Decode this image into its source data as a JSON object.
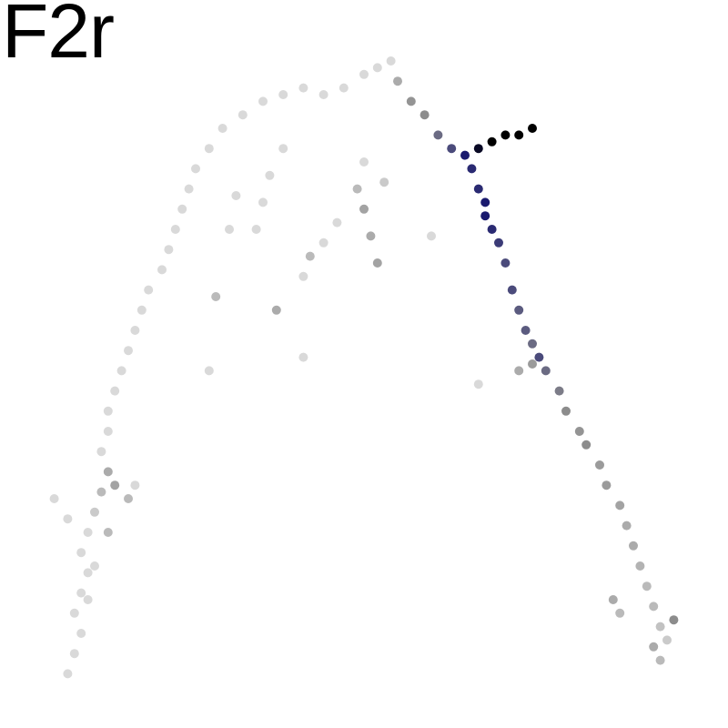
{
  "chart_data": {
    "type": "scatter",
    "title": "F2r",
    "xlabel": "",
    "ylabel": "",
    "axes_visible": false,
    "grid": false,
    "legend": "none",
    "color_scale": {
      "low": "#d9d9d9",
      "mid": "#8c8c8c",
      "high_1": "#1a1a6e",
      "high_2": "#000000"
    },
    "xlim": [
      0,
      100
    ],
    "ylim": [
      0,
      100
    ],
    "series": [
      {
        "points": [
          [
            6,
            4,
            0
          ],
          [
            7,
            7,
            0
          ],
          [
            8,
            10,
            0
          ],
          [
            7,
            13,
            0
          ],
          [
            8,
            16,
            0
          ],
          [
            9,
            19,
            0
          ],
          [
            8,
            22,
            0
          ],
          [
            9,
            25,
            0
          ],
          [
            10,
            28,
            0.1
          ],
          [
            11,
            31,
            0.2
          ],
          [
            12,
            34,
            0.3
          ],
          [
            11,
            37,
            0
          ],
          [
            12,
            40,
            0
          ],
          [
            12,
            43,
            0
          ],
          [
            13,
            46,
            0
          ],
          [
            14,
            49,
            0
          ],
          [
            15,
            52,
            0
          ],
          [
            16,
            55,
            0
          ],
          [
            17,
            58,
            0
          ],
          [
            18,
            61,
            0
          ],
          [
            20,
            64,
            0
          ],
          [
            21,
            67,
            0
          ],
          [
            22,
            70,
            0
          ],
          [
            23,
            73,
            0
          ],
          [
            24,
            76,
            0
          ],
          [
            25,
            79,
            0
          ],
          [
            27,
            82,
            0
          ],
          [
            29,
            85,
            0
          ],
          [
            32,
            87,
            0
          ],
          [
            35,
            89,
            0
          ],
          [
            38,
            90,
            0
          ],
          [
            41,
            91,
            0
          ],
          [
            44,
            90,
            0
          ],
          [
            47,
            91,
            0
          ],
          [
            50,
            93,
            0
          ],
          [
            52,
            94,
            0
          ],
          [
            54,
            95,
            0
          ],
          [
            55,
            92,
            0.3
          ],
          [
            57,
            89,
            0.45
          ],
          [
            59,
            87,
            0.5
          ],
          [
            61,
            84,
            0.6
          ],
          [
            63,
            82,
            0.7
          ],
          [
            65,
            81,
            0.85
          ],
          [
            67,
            82,
            0.95
          ],
          [
            69,
            83,
            1.0
          ],
          [
            71,
            84,
            1.0
          ],
          [
            73,
            84,
            1.0
          ],
          [
            75,
            85,
            1.0
          ],
          [
            66,
            79,
            0.8
          ],
          [
            67,
            76,
            0.8
          ],
          [
            68,
            74,
            0.85
          ],
          [
            68,
            72,
            0.85
          ],
          [
            69,
            70,
            0.8
          ],
          [
            70,
            68,
            0.75
          ],
          [
            71,
            65,
            0.7
          ],
          [
            72,
            61,
            0.7
          ],
          [
            73,
            58,
            0.65
          ],
          [
            74,
            55,
            0.65
          ],
          [
            75,
            53,
            0.6
          ],
          [
            76,
            51,
            0.7
          ],
          [
            77,
            49,
            0.6
          ],
          [
            79,
            46,
            0.55
          ],
          [
            80,
            43,
            0.5
          ],
          [
            82,
            40,
            0.45
          ],
          [
            83,
            38,
            0.5
          ],
          [
            85,
            35,
            0.4
          ],
          [
            86,
            32,
            0.4
          ],
          [
            88,
            29,
            0.35
          ],
          [
            89,
            26,
            0.3
          ],
          [
            90,
            23,
            0.3
          ],
          [
            91,
            20,
            0.25
          ],
          [
            92,
            17,
            0.2
          ],
          [
            93,
            14,
            0.2
          ],
          [
            94,
            11,
            0.15
          ],
          [
            95,
            9,
            0.1
          ],
          [
            96,
            12,
            0.5
          ],
          [
            38,
            82,
            0
          ],
          [
            36,
            78,
            0
          ],
          [
            35,
            74,
            0
          ],
          [
            34,
            70,
            0
          ],
          [
            31,
            75,
            0
          ],
          [
            30,
            70,
            0
          ],
          [
            50,
            80,
            0
          ],
          [
            49,
            76,
            0.2
          ],
          [
            50,
            73,
            0.35
          ],
          [
            51,
            69,
            0.3
          ],
          [
            52,
            65,
            0.35
          ],
          [
            46,
            71,
            0
          ],
          [
            44,
            68,
            0
          ],
          [
            42,
            66,
            0.2
          ],
          [
            41,
            63,
            0
          ],
          [
            53,
            77,
            0.1
          ],
          [
            37,
            58,
            0.3
          ],
          [
            28,
            60,
            0.2
          ],
          [
            27,
            49,
            0
          ],
          [
            41,
            51,
            0
          ],
          [
            67,
            47,
            0
          ],
          [
            73,
            49,
            0.3
          ],
          [
            75,
            50,
            0.4
          ],
          [
            60,
            69,
            0
          ],
          [
            4,
            30,
            0
          ],
          [
            6,
            27,
            0
          ],
          [
            13,
            32,
            0.35
          ],
          [
            15,
            30,
            0.2
          ],
          [
            12,
            25,
            0.2
          ],
          [
            16,
            32,
            0
          ],
          [
            10,
            20,
            0
          ],
          [
            9,
            15,
            0
          ],
          [
            87,
            15,
            0.3
          ],
          [
            88,
            13,
            0.2
          ],
          [
            93,
            8,
            0.3
          ],
          [
            94,
            6,
            0.2
          ]
        ]
      }
    ]
  }
}
